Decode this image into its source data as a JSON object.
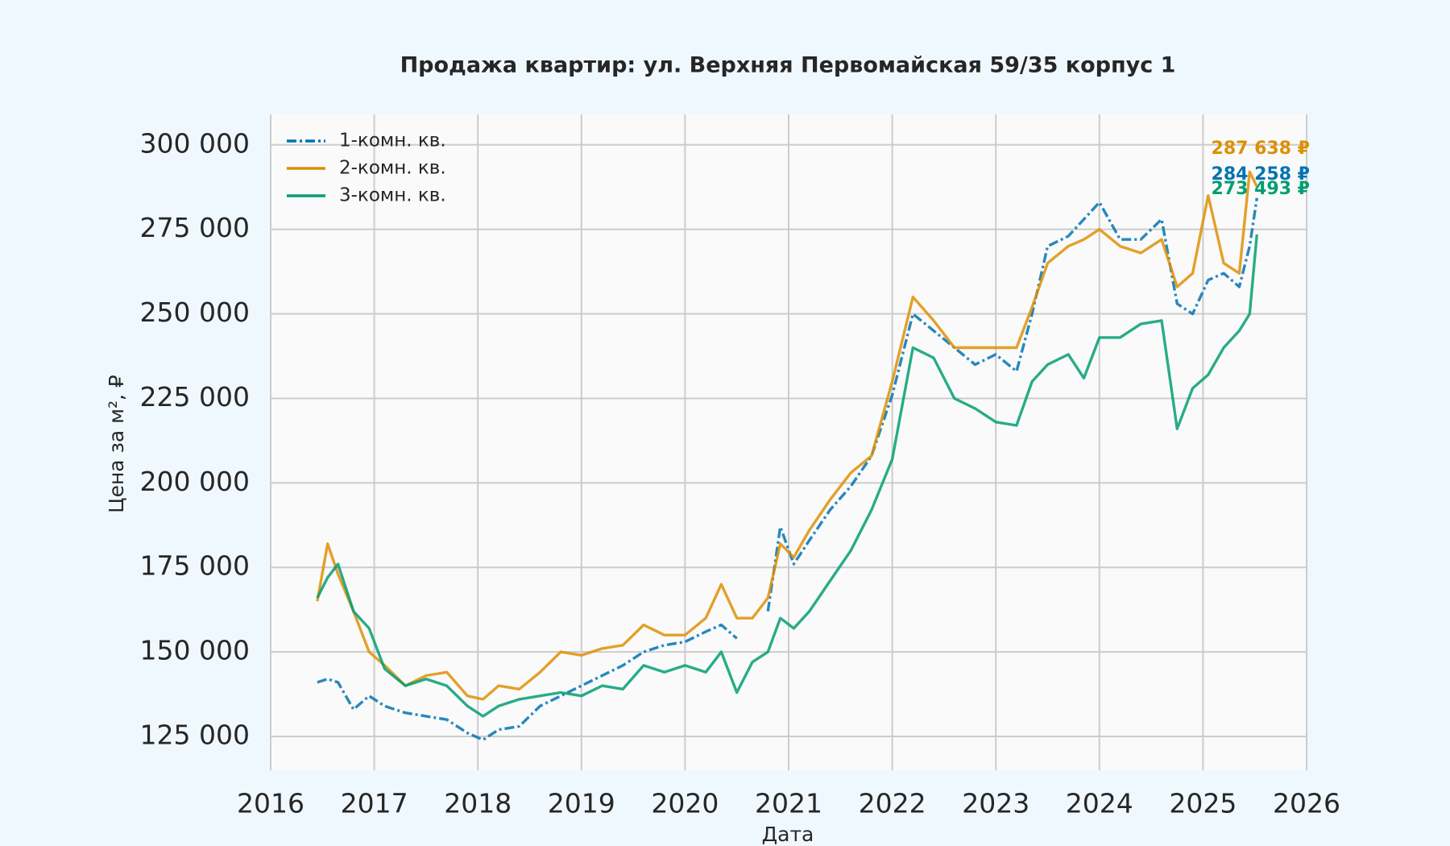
{
  "chart_data": {
    "type": "line",
    "title": "Продажа квартир: ул. Верхняя Первомайская 59/35 корпус 1",
    "x_label": "Дата",
    "y_label": "Цена за м², ₽",
    "x": [
      2016.45,
      2016.55,
      2016.65,
      2016.8,
      2016.95,
      2017.1,
      2017.3,
      2017.5,
      2017.7,
      2017.9,
      2018.05,
      2018.2,
      2018.4,
      2018.6,
      2018.8,
      2019.0,
      2019.2,
      2019.4,
      2019.6,
      2019.8,
      2020.0,
      2020.2,
      2020.35,
      2020.5,
      2020.65,
      2020.8,
      2020.92,
      2021.05,
      2021.2,
      2021.4,
      2021.6,
      2021.8,
      2022.0,
      2022.2,
      2022.4,
      2022.6,
      2022.8,
      2023.0,
      2023.2,
      2023.35,
      2023.5,
      2023.7,
      2023.85,
      2024.0,
      2024.2,
      2024.4,
      2024.6,
      2024.75,
      2024.9,
      2025.05,
      2025.2,
      2025.35,
      2025.45,
      2025.52
    ],
    "series": [
      {
        "name": "1-комн. кв.",
        "color": "#0173b2",
        "dash": true,
        "end_label": "284 258 ₽",
        "values": [
          141000,
          142000,
          141000,
          133000,
          137000,
          134000,
          132000,
          131000,
          130000,
          126000,
          124000,
          127000,
          128000,
          134000,
          137000,
          140000,
          143000,
          146000,
          150000,
          152000,
          153000,
          156000,
          158000,
          154000,
          null,
          162000,
          187000,
          176000,
          183000,
          192000,
          199000,
          208000,
          226000,
          250000,
          245000,
          240000,
          235000,
          238000,
          233000,
          250000,
          270000,
          273000,
          278000,
          283000,
          272000,
          272000,
          278000,
          253000,
          250000,
          260000,
          262000,
          258000,
          270000,
          284258
        ]
      },
      {
        "name": "2-комн. кв.",
        "color": "#de8f05",
        "dash": false,
        "end_label": "287 638 ₽",
        "values": [
          165000,
          182000,
          173000,
          162000,
          150000,
          146000,
          140000,
          143000,
          144000,
          137000,
          136000,
          140000,
          139000,
          144000,
          150000,
          149000,
          151000,
          152000,
          158000,
          155000,
          155000,
          160000,
          170000,
          160000,
          160000,
          166000,
          182000,
          178000,
          186000,
          195000,
          203000,
          208000,
          230000,
          255000,
          248000,
          240000,
          240000,
          240000,
          240000,
          252000,
          265000,
          270000,
          272000,
          275000,
          270000,
          268000,
          272000,
          258000,
          262000,
          285000,
          265000,
          262000,
          292000,
          287638
        ]
      },
      {
        "name": "3-комн. кв.",
        "color": "#029e73",
        "dash": false,
        "end_label": "273 493 ₽",
        "values": [
          166000,
          172000,
          176000,
          162000,
          157000,
          145000,
          140000,
          142000,
          140000,
          134000,
          131000,
          134000,
          136000,
          137000,
          138000,
          137000,
          140000,
          139000,
          146000,
          144000,
          146000,
          144000,
          150000,
          138000,
          147000,
          150000,
          160000,
          157000,
          162000,
          171000,
          180000,
          192000,
          207000,
          240000,
          237000,
          225000,
          222000,
          218000,
          217000,
          230000,
          235000,
          238000,
          231000,
          243000,
          243000,
          247000,
          248000,
          216000,
          228000,
          232000,
          240000,
          245000,
          250000,
          273493
        ]
      }
    ],
    "xlim": [
      2016,
      2026
    ],
    "xticks": [
      2016,
      2017,
      2018,
      2019,
      2020,
      2021,
      2022,
      2023,
      2024,
      2025,
      2026
    ],
    "ylim": [
      115000,
      309000
    ],
    "yticks": [
      {
        "value": 125000,
        "label": "125 000"
      },
      {
        "value": 150000,
        "label": "150 000"
      },
      {
        "value": 175000,
        "label": "175 000"
      },
      {
        "value": 200000,
        "label": "200 000"
      },
      {
        "value": 225000,
        "label": "225 000"
      },
      {
        "value": 250000,
        "label": "250 000"
      },
      {
        "value": 275000,
        "label": "275 000"
      },
      {
        "value": 300000,
        "label": "300 000"
      }
    ],
    "grid": true,
    "legend": "upper left"
  }
}
